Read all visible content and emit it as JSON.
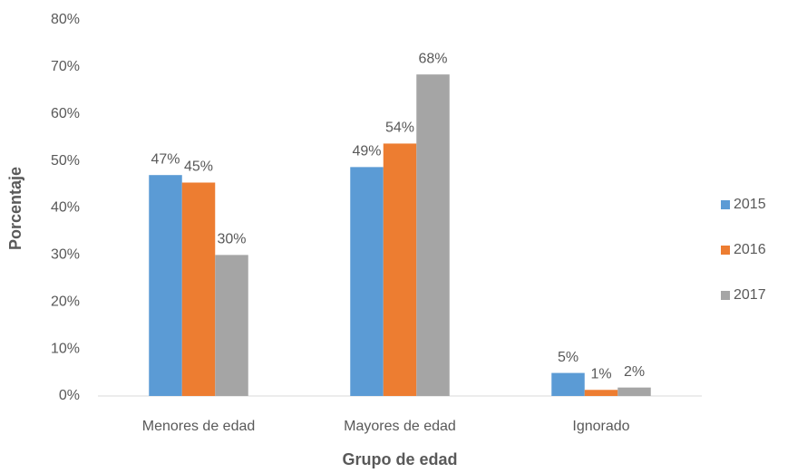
{
  "chart_data": {
    "type": "bar",
    "x_label": "Grupo de edad",
    "y_label": "Porcentaje",
    "categories": [
      "Menores de edad",
      "Mayores de edad",
      "Ignorado"
    ],
    "series": [
      {
        "name": "2015",
        "color": "#5b9bd5",
        "values": [
          47.0,
          48.7,
          4.9
        ],
        "value_labels": [
          "47%",
          "49%",
          "5%"
        ]
      },
      {
        "name": "2016",
        "color": "#ed7d31",
        "values": [
          45.4,
          53.7,
          1.3
        ],
        "value_labels": [
          "45%",
          "54%",
          "1%"
        ]
      },
      {
        "name": "2017",
        "color": "#a5a5a5",
        "values": [
          30.0,
          68.4,
          1.8
        ],
        "value_labels": [
          "30%",
          "68%",
          "2%"
        ]
      }
    ],
    "ylim": [
      0,
      80
    ],
    "yticks": [
      {
        "value": 0,
        "label": "0%"
      },
      {
        "value": 10,
        "label": "10%"
      },
      {
        "value": 20,
        "label": "20%"
      },
      {
        "value": 30,
        "label": "30%"
      },
      {
        "value": 40,
        "label": "40%"
      },
      {
        "value": 50,
        "label": "50%"
      },
      {
        "value": 60,
        "label": "60%"
      },
      {
        "value": 70,
        "label": "70%"
      },
      {
        "value": 80,
        "label": "80%"
      }
    ],
    "grid": false,
    "legend": "right"
  }
}
